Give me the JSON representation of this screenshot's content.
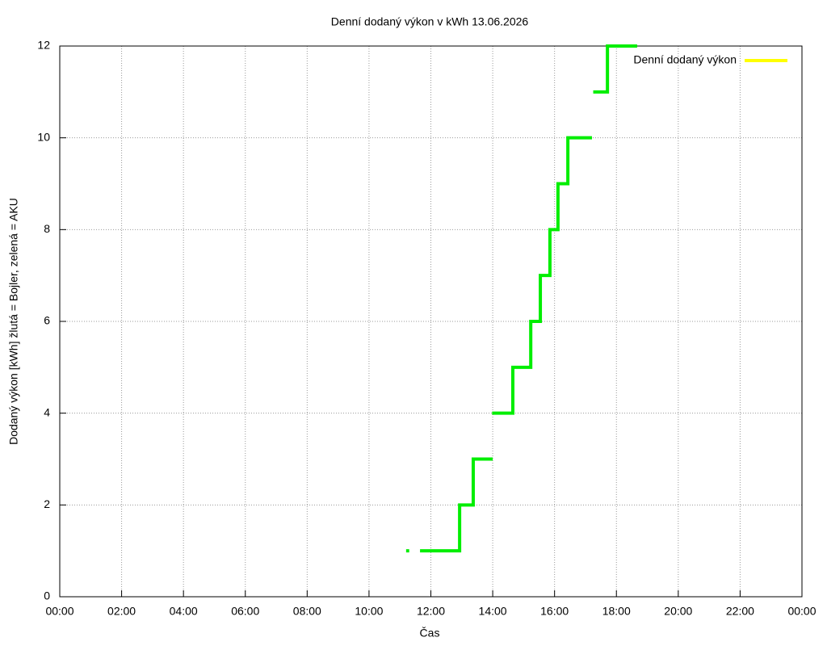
{
  "chart_data": {
    "type": "line",
    "title": "Denní dodaný výkon v kWh 13.06.2026",
    "xlabel": "Čas",
    "ylabel": "Dodaný výkon [kWh]  žlutá = Bojler, zelená = AKU",
    "x": [
      11.2,
      11.3,
      null,
      11.65,
      12.93,
      12.93,
      13.37,
      13.37,
      14.0,
      null,
      13.98,
      14.65,
      14.65,
      15.23,
      15.23,
      15.54,
      15.54,
      15.85,
      15.85,
      16.11,
      16.11,
      16.43,
      16.43,
      17.21,
      null,
      17.25,
      17.71,
      17.71,
      18.67
    ],
    "series": [
      {
        "name": "Denní dodaný výkon",
        "color": "#00ee00",
        "legend_color": "#ffff00",
        "values": [
          1,
          1,
          null,
          1,
          1,
          2,
          2,
          3,
          3,
          null,
          4,
          4,
          5,
          5,
          6,
          6,
          7,
          7,
          8,
          8,
          9,
          9,
          10,
          10,
          null,
          11,
          11,
          12,
          12
        ]
      }
    ],
    "xlim": [
      0,
      24
    ],
    "xticks": [
      {
        "value": 0,
        "label": "00:00"
      },
      {
        "value": 2,
        "label": "02:00"
      },
      {
        "value": 4,
        "label": "04:00"
      },
      {
        "value": 6,
        "label": "06:00"
      },
      {
        "value": 8,
        "label": "08:00"
      },
      {
        "value": 10,
        "label": "10:00"
      },
      {
        "value": 12,
        "label": "12:00"
      },
      {
        "value": 14,
        "label": "14:00"
      },
      {
        "value": 16,
        "label": "16:00"
      },
      {
        "value": 18,
        "label": "18:00"
      },
      {
        "value": 20,
        "label": "20:00"
      },
      {
        "value": 22,
        "label": "22:00"
      },
      {
        "value": 24,
        "label": "00:00"
      }
    ],
    "ylim": [
      0,
      12
    ],
    "yticks": [
      0,
      2,
      4,
      6,
      8,
      10,
      12
    ],
    "grid": true,
    "legend": "top-right"
  }
}
